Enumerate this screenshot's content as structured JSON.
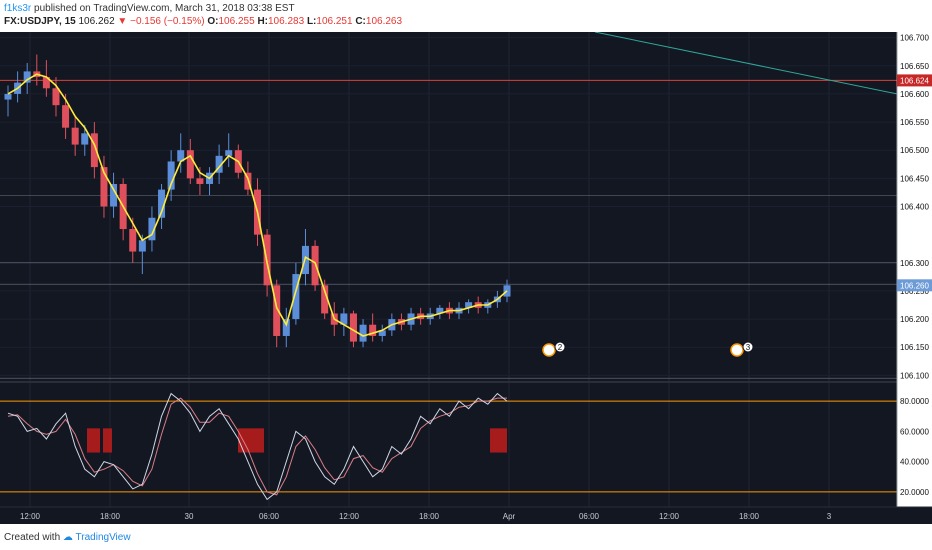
{
  "header": {
    "user": "f1ks3r",
    "published": "published on TradingView.com, March 31, 2018 03:38 EST",
    "symbol": "FX:USDJPY, 15",
    "price": "106.262",
    "change": "−0.156 (−0.15%)",
    "o_label": "O:",
    "o": "106.255",
    "h_label": "H:",
    "h": "106.283",
    "l_label": "L:",
    "l": "106.251",
    "c_label": "C:",
    "c": "106.263"
  },
  "footer": {
    "created": "Created with",
    "brand": "TradingView"
  },
  "colors": {
    "background": "#131722",
    "bull": "#5b8dd9",
    "bear": "#e0505c",
    "ma": "#ffeb3b",
    "hline_red": "#d6423a",
    "hline_gray": "#a9b4c2",
    "trendline": "#2fa89c",
    "stoch_k": "#cfd6e6",
    "stoch_d": "#d97d86",
    "osc_band": "#ff9800",
    "osc_fill": "#b71c1c"
  },
  "chart_data": {
    "type": "candlestick",
    "symbol": "FX:USDJPY",
    "interval": "15",
    "price_ticks": [
      "106.700",
      "106.650",
      "106.600",
      "106.550",
      "106.500",
      "106.450",
      "106.400",
      "106.300",
      "106.250",
      "106.200",
      "106.150",
      "106.100"
    ],
    "price_range": [
      106.09,
      106.71
    ],
    "badges": [
      {
        "value": "106.624",
        "color": "#c62828"
      },
      {
        "value": "106.260",
        "color": "#6c9bd8"
      }
    ],
    "time_ticks": [
      "12:00",
      "18:00",
      "30",
      "06:00",
      "12:00",
      "18:00",
      "Apr",
      "06:00",
      "12:00",
      "18:00",
      "3"
    ],
    "horizontal_levels": [
      106.624,
      106.42,
      106.3,
      106.262,
      106.095
    ],
    "candles": [
      [
        106.59,
        106.615,
        106.56,
        106.6
      ],
      [
        106.6,
        106.64,
        106.585,
        106.62
      ],
      [
        106.62,
        106.655,
        106.6,
        106.64
      ],
      [
        106.64,
        106.67,
        106.615,
        106.63
      ],
      [
        106.63,
        106.66,
        106.595,
        106.61
      ],
      [
        106.61,
        106.63,
        106.56,
        106.58
      ],
      [
        106.58,
        106.6,
        106.52,
        106.54
      ],
      [
        106.54,
        106.56,
        106.49,
        106.51
      ],
      [
        106.51,
        106.545,
        106.49,
        106.53
      ],
      [
        106.53,
        106.55,
        106.45,
        106.47
      ],
      [
        106.47,
        106.49,
        106.38,
        106.4
      ],
      [
        106.4,
        106.46,
        106.38,
        106.44
      ],
      [
        106.44,
        106.45,
        106.34,
        106.36
      ],
      [
        106.36,
        106.38,
        106.3,
        106.32
      ],
      [
        106.32,
        106.35,
        106.28,
        106.34
      ],
      [
        106.34,
        106.4,
        106.32,
        106.38
      ],
      [
        106.38,
        106.44,
        106.36,
        106.43
      ],
      [
        106.43,
        106.5,
        106.41,
        106.48
      ],
      [
        106.48,
        106.53,
        106.46,
        106.5
      ],
      [
        106.5,
        106.52,
        106.44,
        106.45
      ],
      [
        106.45,
        106.47,
        106.42,
        106.44
      ],
      [
        106.44,
        106.47,
        106.42,
        106.46
      ],
      [
        106.46,
        106.51,
        106.44,
        106.49
      ],
      [
        106.49,
        106.53,
        106.47,
        106.5
      ],
      [
        106.5,
        106.51,
        106.45,
        106.46
      ],
      [
        106.46,
        106.48,
        106.42,
        106.43
      ],
      [
        106.43,
        106.45,
        106.33,
        106.35
      ],
      [
        106.35,
        106.36,
        106.24,
        106.26
      ],
      [
        106.26,
        106.27,
        106.15,
        106.17
      ],
      [
        106.17,
        106.22,
        106.15,
        106.2
      ],
      [
        106.2,
        106.3,
        106.19,
        106.28
      ],
      [
        106.28,
        106.36,
        106.26,
        106.33
      ],
      [
        106.33,
        106.34,
        106.25,
        106.26
      ],
      [
        106.26,
        106.27,
        106.2,
        106.21
      ],
      [
        106.21,
        106.23,
        106.17,
        106.19
      ],
      [
        106.19,
        106.22,
        106.17,
        106.21
      ],
      [
        106.21,
        106.215,
        106.15,
        106.16
      ],
      [
        106.16,
        106.2,
        106.15,
        106.19
      ],
      [
        106.19,
        106.21,
        106.16,
        106.17
      ],
      [
        106.17,
        106.19,
        106.16,
        106.18
      ],
      [
        106.18,
        106.21,
        106.17,
        106.2
      ],
      [
        106.2,
        106.21,
        106.18,
        106.19
      ],
      [
        106.19,
        106.22,
        106.18,
        106.21
      ],
      [
        106.21,
        106.22,
        106.19,
        106.2
      ],
      [
        106.2,
        106.22,
        106.19,
        106.21
      ],
      [
        106.21,
        106.225,
        106.2,
        106.22
      ],
      [
        106.22,
        106.23,
        106.2,
        106.21
      ],
      [
        106.21,
        106.23,
        106.2,
        106.22
      ],
      [
        106.22,
        106.235,
        106.21,
        106.23
      ],
      [
        106.23,
        106.24,
        106.21,
        106.22
      ],
      [
        106.22,
        106.235,
        106.21,
        106.23
      ],
      [
        106.23,
        106.25,
        106.22,
        106.24
      ],
      [
        106.24,
        106.27,
        106.23,
        106.26
      ]
    ],
    "moving_average": [
      106.6,
      106.61,
      106.625,
      106.635,
      106.63,
      106.615,
      106.59,
      106.56,
      106.54,
      106.51,
      106.46,
      106.43,
      106.4,
      106.37,
      106.34,
      106.35,
      106.39,
      106.44,
      106.48,
      106.49,
      106.46,
      106.45,
      106.47,
      106.49,
      106.48,
      106.45,
      106.39,
      106.3,
      106.22,
      106.19,
      106.25,
      106.31,
      106.3,
      106.25,
      106.2,
      106.19,
      106.18,
      106.17,
      106.175,
      106.18,
      106.19,
      106.195,
      106.2,
      106.205,
      106.205,
      106.21,
      106.215,
      106.215,
      106.22,
      106.225,
      106.225,
      106.235,
      106.25
    ],
    "events_markers": [
      {
        "label": "2",
        "position_hint": "Apr early"
      },
      {
        "label": "3",
        "position_hint": "Apr 18:00"
      }
    ],
    "oscillator": {
      "ticks": [
        "80.0000",
        "60.0000",
        "40.0000",
        "20.0000"
      ],
      "range": [
        10,
        92
      ],
      "bands": [
        80,
        20
      ],
      "k": [
        72,
        70,
        60,
        62,
        55,
        65,
        72,
        50,
        35,
        30,
        40,
        38,
        30,
        22,
        25,
        45,
        70,
        85,
        80,
        72,
        60,
        70,
        75,
        65,
        55,
        40,
        25,
        15,
        20,
        40,
        60,
        55,
        40,
        30,
        25,
        35,
        50,
        40,
        30,
        35,
        50,
        45,
        55,
        70,
        65,
        75,
        70,
        80,
        75,
        82,
        78,
        85,
        80
      ],
      "d": [
        70,
        71,
        65,
        60,
        58,
        60,
        68,
        58,
        42,
        33,
        35,
        38,
        34,
        27,
        24,
        35,
        58,
        78,
        82,
        76,
        66,
        66,
        72,
        70,
        60,
        48,
        32,
        20,
        18,
        30,
        50,
        57,
        48,
        36,
        28,
        30,
        42,
        44,
        36,
        33,
        42,
        46,
        50,
        62,
        67,
        70,
        72,
        76,
        77,
        80,
        80,
        82,
        82
      ]
    }
  }
}
